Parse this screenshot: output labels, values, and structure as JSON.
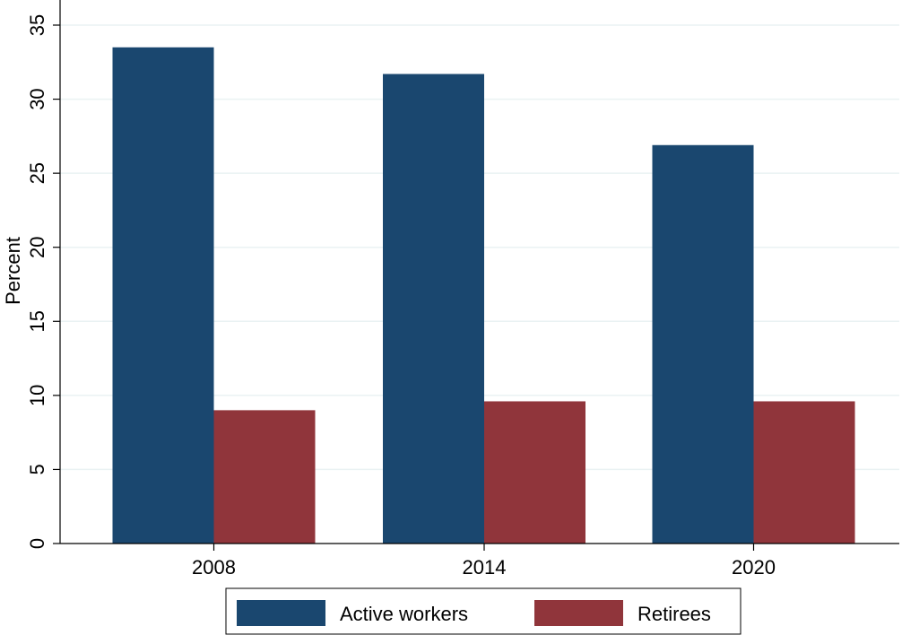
{
  "chart_data": {
    "type": "bar",
    "title": "",
    "xlabel": "",
    "ylabel": "Percent",
    "categories": [
      "2008",
      "2014",
      "2020"
    ],
    "ylim": [
      0,
      35
    ],
    "yticks": [
      0,
      5,
      10,
      15,
      20,
      25,
      30,
      35
    ],
    "grid": true,
    "legend_position": "bottom",
    "series": [
      {
        "name": "Active workers",
        "color": "#1a476f",
        "values": [
          33.5,
          31.7,
          26.9
        ]
      },
      {
        "name": "Retirees",
        "color": "#90353b",
        "values": [
          9.0,
          9.6,
          9.6
        ]
      }
    ]
  }
}
